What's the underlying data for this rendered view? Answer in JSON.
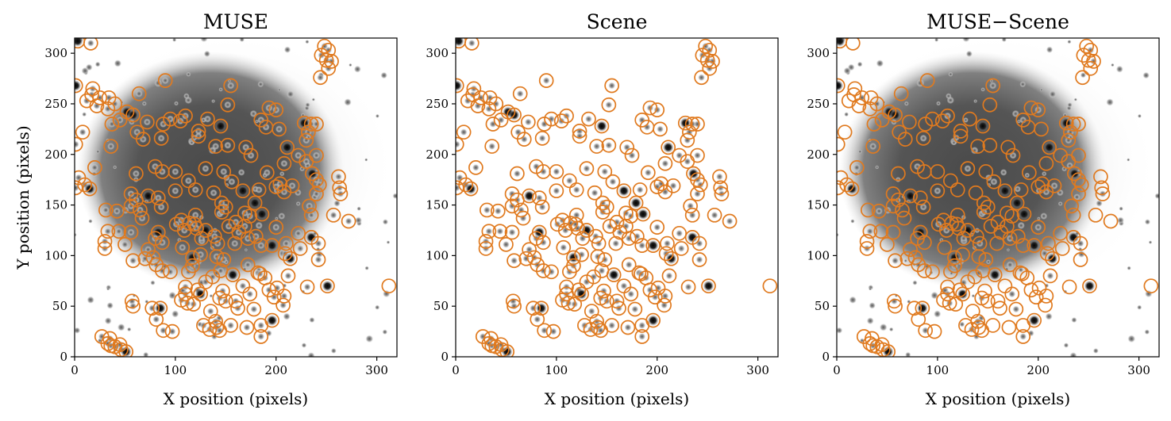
{
  "colors": {
    "marker": "#e07a1f",
    "axis": "#000000",
    "background": "#ffffff"
  },
  "panels": [
    {
      "title": "MUSE",
      "show_background_image": true,
      "show_ylabel": true,
      "show_edge_source": false
    },
    {
      "title": "Scene",
      "show_background_image": false,
      "show_ylabel": false,
      "show_edge_source": true
    },
    {
      "title": "MUSE−Scene",
      "show_background_image": true,
      "show_ylabel": false,
      "show_edge_source": false
    }
  ],
  "chart_data": {
    "type": "scatter",
    "xlabel": "X position (pixels)",
    "ylabel": "Y position (pixels)",
    "xlim": [
      0,
      320
    ],
    "ylim": [
      0,
      315
    ],
    "xticks": [
      0,
      100,
      200,
      300
    ],
    "yticks": [
      0,
      50,
      100,
      150,
      200,
      250,
      300
    ],
    "marker": "open circle",
    "sources": [
      [
        3,
        312
      ],
      [
        16,
        310
      ],
      [
        248,
        307
      ],
      [
        252,
        303
      ],
      [
        245,
        298
      ],
      [
        250,
        293
      ],
      [
        255,
        292
      ],
      [
        252,
        285
      ],
      [
        244,
        276
      ],
      [
        1,
        268
      ],
      [
        18,
        265
      ],
      [
        17,
        259
      ],
      [
        25,
        256
      ],
      [
        12,
        253
      ],
      [
        34,
        256
      ],
      [
        40,
        250
      ],
      [
        22,
        248
      ],
      [
        33,
        245
      ],
      [
        52,
        242
      ],
      [
        64,
        260
      ],
      [
        90,
        273
      ],
      [
        155,
        268
      ],
      [
        152,
        249
      ],
      [
        193,
        246
      ],
      [
        200,
        244
      ],
      [
        37,
        230
      ],
      [
        45,
        234
      ],
      [
        58,
        239
      ],
      [
        72,
        232
      ],
      [
        95,
        235
      ],
      [
        110,
        238
      ],
      [
        105,
        233
      ],
      [
        132,
        235
      ],
      [
        185,
        234
      ],
      [
        190,
        227
      ],
      [
        203,
        225
      ],
      [
        228,
        231
      ],
      [
        235,
        230
      ],
      [
        240,
        230
      ],
      [
        232,
        222
      ],
      [
        8,
        222
      ],
      [
        88,
        230
      ],
      [
        86,
        216
      ],
      [
        68,
        215
      ],
      [
        62,
        222
      ],
      [
        145,
        228
      ],
      [
        123,
        223
      ],
      [
        123,
        218
      ],
      [
        230,
        214
      ],
      [
        152,
        209
      ],
      [
        140,
        208
      ],
      [
        36,
        208
      ],
      [
        1,
        210
      ],
      [
        170,
        207
      ],
      [
        211,
        207
      ],
      [
        222,
        199
      ],
      [
        240,
        199
      ],
      [
        175,
        199
      ],
      [
        230,
        193
      ],
      [
        208,
        191
      ],
      [
        20,
        187
      ],
      [
        4,
        177
      ],
      [
        10,
        170
      ],
      [
        15,
        166
      ],
      [
        1,
        167
      ],
      [
        61,
        181
      ],
      [
        80,
        188
      ],
      [
        87,
        183
      ],
      [
        100,
        183
      ],
      [
        130,
        186
      ],
      [
        148,
        183
      ],
      [
        191,
        182
      ],
      [
        236,
        181
      ],
      [
        262,
        178
      ],
      [
        113,
        174
      ],
      [
        156,
        173
      ],
      [
        204,
        171
      ],
      [
        240,
        175
      ],
      [
        100,
        164
      ],
      [
        120,
        165
      ],
      [
        138,
        162
      ],
      [
        167,
        164
      ],
      [
        183,
        165
      ],
      [
        200,
        168
      ],
      [
        216,
        169
      ],
      [
        243,
        170
      ],
      [
        263,
        167
      ],
      [
        208,
        163
      ],
      [
        56,
        161
      ],
      [
        61,
        155
      ],
      [
        73,
        159
      ],
      [
        83,
        157
      ],
      [
        240,
        161
      ],
      [
        264,
        161
      ],
      [
        56,
        149
      ],
      [
        65,
        145
      ],
      [
        86,
        148
      ],
      [
        146,
        152
      ],
      [
        150,
        148
      ],
      [
        179,
        152
      ],
      [
        233,
        149
      ],
      [
        31,
        145
      ],
      [
        42,
        144
      ],
      [
        67,
        137
      ],
      [
        120,
        140
      ],
      [
        146,
        143
      ],
      [
        169,
        142
      ],
      [
        174,
        139
      ],
      [
        186,
        141
      ],
      [
        235,
        140
      ],
      [
        257,
        140
      ],
      [
        101,
        131
      ],
      [
        106,
        135
      ],
      [
        119,
        131
      ],
      [
        109,
        125
      ],
      [
        114,
        132
      ],
      [
        121,
        127
      ],
      [
        130,
        125
      ],
      [
        153,
        129
      ],
      [
        169,
        129
      ],
      [
        200,
        128
      ],
      [
        272,
        134
      ],
      [
        160,
        133
      ],
      [
        33,
        124
      ],
      [
        44,
        124
      ],
      [
        56,
        123
      ],
      [
        83,
        123
      ],
      [
        80,
        117
      ],
      [
        87,
        113
      ],
      [
        126,
        117
      ],
      [
        139,
        119
      ],
      [
        163,
        123
      ],
      [
        172,
        117
      ],
      [
        180,
        119
      ],
      [
        222,
        122
      ],
      [
        235,
        118
      ],
      [
        30,
        114
      ],
      [
        50,
        111
      ],
      [
        30,
        107
      ],
      [
        73,
        106
      ],
      [
        107,
        108
      ],
      [
        142,
        112
      ],
      [
        159,
        112
      ],
      [
        185,
        110
      ],
      [
        196,
        110
      ],
      [
        210,
        112
      ],
      [
        224,
        107
      ],
      [
        242,
        112
      ],
      [
        70,
        97
      ],
      [
        78,
        98
      ],
      [
        81,
        91
      ],
      [
        87,
        85
      ],
      [
        95,
        84
      ],
      [
        117,
        98
      ],
      [
        125,
        101
      ],
      [
        113,
        84
      ],
      [
        117,
        90
      ],
      [
        141,
        99
      ],
      [
        148,
        96
      ],
      [
        172,
        91
      ],
      [
        182,
        83
      ],
      [
        184,
        82
      ],
      [
        214,
        97
      ],
      [
        209,
        102
      ],
      [
        242,
        96
      ],
      [
        58,
        95
      ],
      [
        145,
        85
      ],
      [
        189,
        78
      ],
      [
        212,
        80
      ],
      [
        130,
        74
      ],
      [
        137,
        79
      ],
      [
        157,
        81
      ],
      [
        167,
        70
      ],
      [
        110,
        69
      ],
      [
        110,
        62
      ],
      [
        122,
        66
      ],
      [
        147,
        65
      ],
      [
        174,
        62
      ],
      [
        193,
        66
      ],
      [
        231,
        69
      ],
      [
        251,
        70
      ],
      [
        201,
        68
      ],
      [
        208,
        60
      ],
      [
        144,
        58
      ],
      [
        150,
        55
      ],
      [
        160,
        55
      ],
      [
        112,
        53
      ],
      [
        106,
        56
      ],
      [
        118,
        52
      ],
      [
        125,
        62
      ],
      [
        135,
        45
      ],
      [
        162,
        48
      ],
      [
        178,
        47
      ],
      [
        198,
        59
      ],
      [
        207,
        51
      ],
      [
        57,
        55
      ],
      [
        58,
        50
      ],
      [
        77,
        48
      ],
      [
        85,
        48
      ],
      [
        81,
        37
      ],
      [
        128,
        31
      ],
      [
        140,
        35
      ],
      [
        141,
        29
      ],
      [
        144,
        26
      ],
      [
        134,
        27
      ],
      [
        155,
        31
      ],
      [
        171,
        29
      ],
      [
        196,
        36
      ],
      [
        185,
        31
      ],
      [
        97,
        25
      ],
      [
        88,
        26
      ],
      [
        27,
        20
      ],
      [
        33,
        13
      ],
      [
        36,
        11
      ],
      [
        40,
        10
      ],
      [
        46,
        7
      ],
      [
        51,
        5
      ],
      [
        35,
        18
      ],
      [
        45,
        12
      ],
      [
        185,
        20
      ]
    ],
    "edge_source": [
      312,
      70
    ]
  }
}
